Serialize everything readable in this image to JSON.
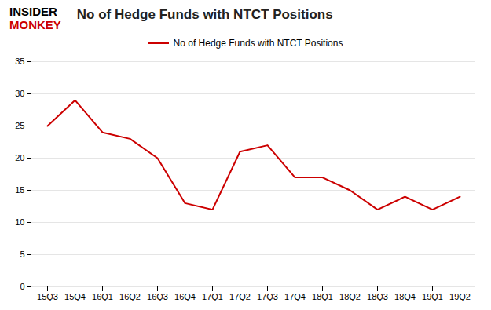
{
  "chart_data": {
    "type": "line",
    "title": "No of Hedge Funds with NTCT Positions",
    "categories": [
      "15Q3",
      "15Q4",
      "16Q1",
      "16Q2",
      "16Q3",
      "16Q4",
      "17Q1",
      "17Q2",
      "17Q3",
      "17Q4",
      "18Q1",
      "18Q2",
      "18Q3",
      "18Q4",
      "19Q1",
      "19Q2"
    ],
    "series": [
      {
        "name": "No of Hedge Funds with NTCT Positions",
        "color": "#cc0000",
        "values": [
          25,
          29,
          24,
          23,
          20,
          13,
          12,
          21,
          22,
          17,
          17,
          15,
          12,
          14,
          12,
          14
        ]
      }
    ],
    "ylim": [
      0,
      35
    ],
    "yticks": [
      0,
      5,
      10,
      15,
      20,
      25,
      30,
      35
    ],
    "grid": true,
    "legend": "top",
    "annotations": [
      {
        "text": "INSIDER",
        "color": "#000000"
      },
      {
        "text": "MONKEY",
        "color": "#cc0000"
      }
    ]
  }
}
